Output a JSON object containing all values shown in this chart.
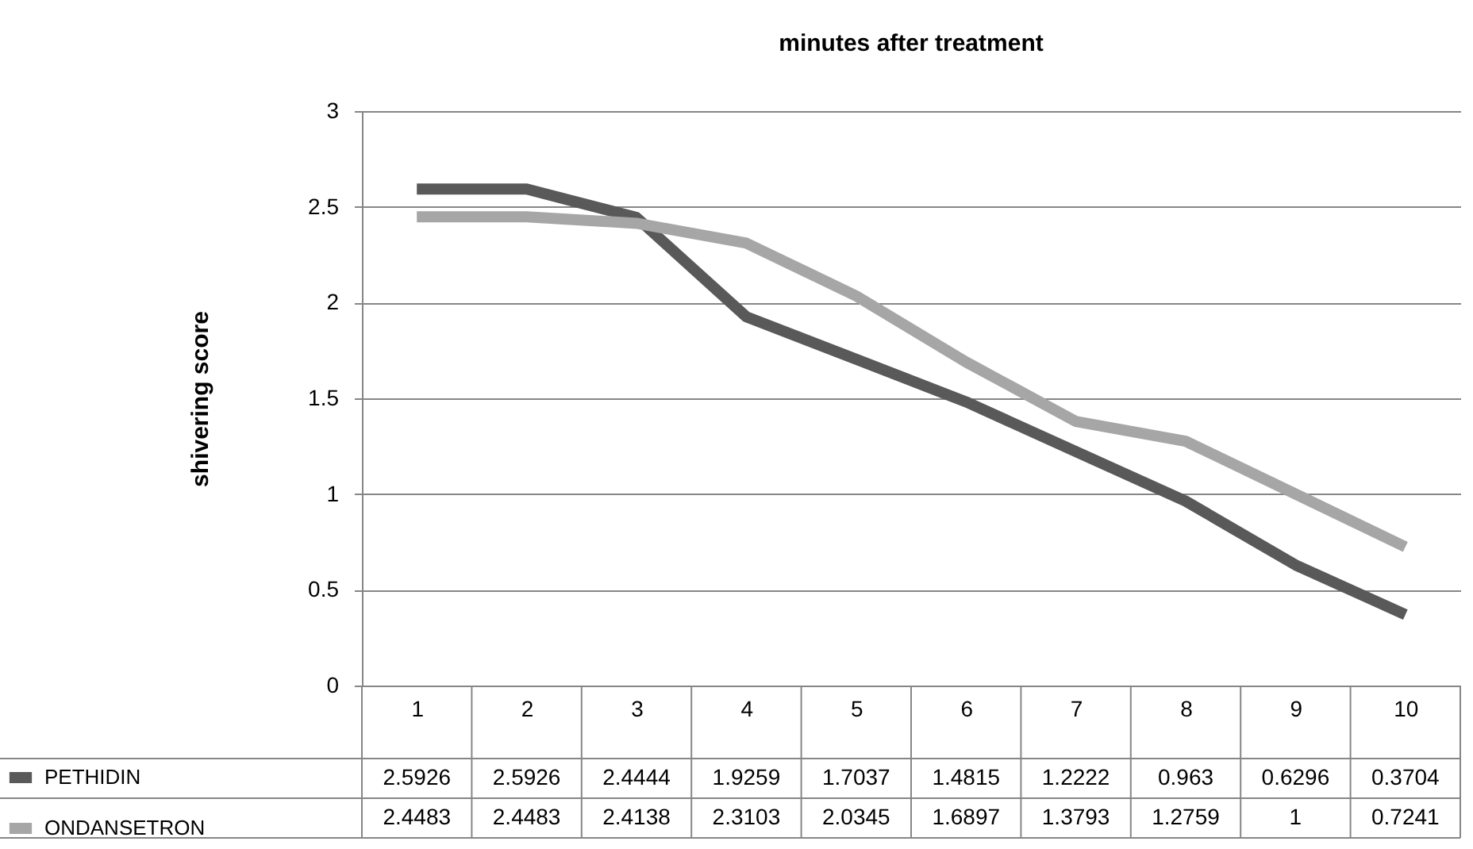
{
  "chart_data": {
    "type": "line",
    "title": "minutes after treatment",
    "ylabel": "shivering score",
    "categories": [
      "1",
      "2",
      "3",
      "4",
      "5",
      "6",
      "7",
      "8",
      "9",
      "10"
    ],
    "series": [
      {
        "name": "PETHIDIN",
        "color": "#595959",
        "values": [
          2.5926,
          2.5926,
          2.4444,
          1.9259,
          1.7037,
          1.4815,
          1.2222,
          0.963,
          0.6296,
          0.3704
        ]
      },
      {
        "name": "ONDANSETRON",
        "color": "#a6a6a6",
        "values": [
          2.4483,
          2.4483,
          2.4138,
          2.3103,
          2.0345,
          1.6897,
          1.3793,
          1.2759,
          1,
          0.7241
        ]
      }
    ],
    "ylim": [
      0,
      3
    ],
    "yticks": [
      0,
      0.5,
      1,
      1.5,
      2,
      2.5,
      3
    ],
    "grid": "y",
    "legend": "bottom left",
    "data_labels": true,
    "marker": "none",
    "line_style": "solid"
  }
}
